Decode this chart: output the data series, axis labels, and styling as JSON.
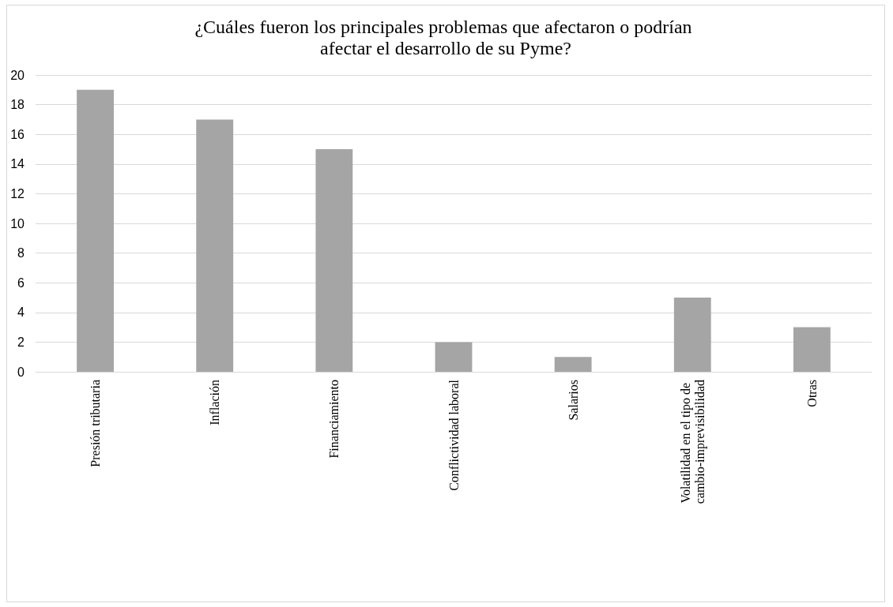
{
  "chart_data": {
    "type": "bar",
    "title": "¿Cuáles fueron los principales problemas que afectaron o podrían afectar el desarrollo de su Pyme?",
    "categories": [
      "Presión tributaria",
      "Inflación",
      "Financiamiento",
      "Conflictividad laboral",
      "Salarios",
      "Volatilidad en el tipo de cambio-imprevisibilidad",
      "Otras"
    ],
    "values": [
      19,
      17,
      15,
      2,
      1,
      5,
      3
    ],
    "color": "#a5a5a5",
    "ylim": [
      0,
      20
    ],
    "yticks": [
      0,
      2,
      4,
      6,
      8,
      10,
      12,
      14,
      16,
      18,
      20
    ],
    "grid": "y"
  }
}
